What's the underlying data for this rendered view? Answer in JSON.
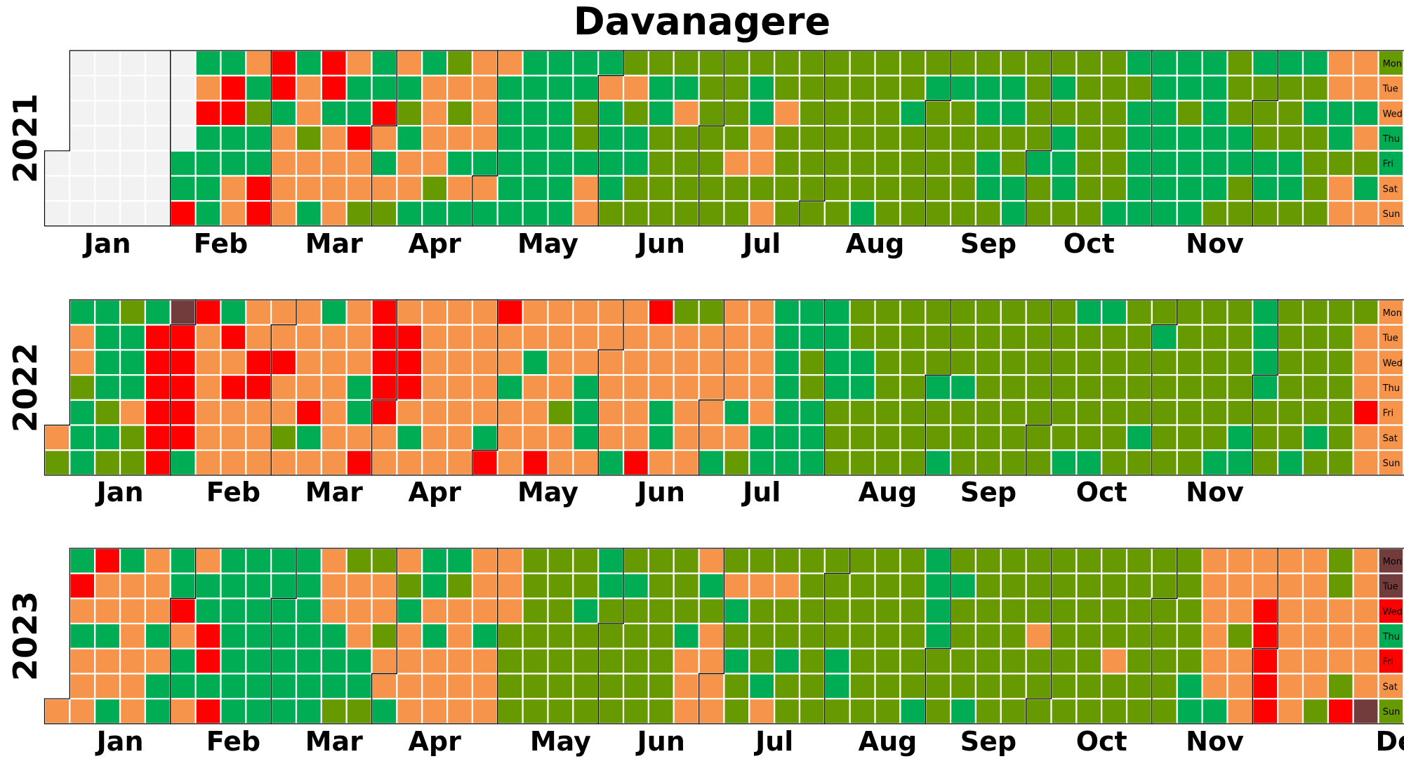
{
  "title": "Davanagere",
  "chart_data": {
    "type": "heatmap",
    "title": "Davanagere",
    "layout": "calendar",
    "day_labels": [
      "Mon",
      "Tue",
      "Wed",
      "Thu",
      "Fri",
      "Sat",
      "Sun"
    ],
    "month_labels": [
      "Jan",
      "Feb",
      "Mar",
      "Apr",
      "May",
      "Jun",
      "Jul",
      "Aug",
      "Sep",
      "Oct",
      "Nov",
      "Dec"
    ],
    "palette": {
      "G": "#00ad55",
      "O": "#679a01",
      "A": "#f5944a",
      "R": "#fe0000",
      "M": "#733c3c",
      "N": "#f2f2f2"
    },
    "years": [
      {
        "year": "2021",
        "first_weekday": 4,
        "days": "NNNNNNNNNNNNNNNNNNNNNNNNNNNNNNNNNNNGGRGARGGGGGRRGGAAAGOGGRRRRGAAAAGAAOAAGRRGAAAAAGGRAAOGGRAGAOAGOGAAGGAAAAOGOAOAGAGAAAAGAGAGGGGGGGGGGGGGGGGGGGGGGOOGAAGAGGGGOOAOGGOOOGGOOOOOGAOOOOOOOOOOOOOOOAOOOGGAAOAOOAOOOOOOOOOOOOOOOOOOOOOOOOGOOOOOOOOOGOOOOOGOOOOOOGOOOOOOGGOGGOOGGOOGGOOOOGOOOGOGGGOOOOOOOOOOOOOOGGOGGGGGGGGGGGGGGOGGGGGGGGGGOOOOGGOOGOOOGGOGOOOGGOGOGOOOOAAGGOAAAAGAOGAOAAGGAAOOOAAAOAOORRRAOOOOAGGGGAOGGAOOGAOOGGGGOGOOOAAAAOOAAAAOAAARRRRAAOGAGGGGGAAAARAAA",
        "month_starts": [
          1,
          32,
          60,
          91,
          121,
          152,
          182,
          213,
          244,
          274,
          305,
          335
        ]
      },
      {
        "year": "2022",
        "first_weekday": 5,
        "days": "AOGAAOGGGGGGGOGOOGGGAOOGRRRRRRMRRRRRGRAAAAAAGRARAAAAARRAAAAARAAOAAAAARGAGAAAAAAAAAGGARRRRRRAAARRRAGAAAAAAAAAAAAAAAAAAAAGRRAAGAAAAAGAAARAAAAOAAAAAGGGAAAAAAAGAAAAAARRAAAGGAOAAAAAAOAAAAAGAAAAGAOAAAAAGGGGGGGGGGGOOGGGGGGGOOOOOGGOOOOOOOOOOOOOOOOOOOOGOOGOOOGOOOOOOOOOOOOOOOOOOOOOOOOOOOOOOGGOOOOOGGOOOOOOOOOOOGOOGOOOOOOOOOOOOOOOOOOGOOOOOGGGGGGOOOOOOOOOGOOOOOGOOOOOOOOOAAARAAAAAAAAAARAOOAAAOGOAGOAAAARARARGAAGGARRRRRAGAGOAAAAGAOOOOGAAAAGGAAAG",
        "month_starts": [
          1,
          32,
          60,
          91,
          121,
          152,
          182,
          213,
          244,
          274,
          305,
          335
        ]
      },
      {
        "year": "2023",
        "first_weekday": 6,
        "days": "AGRAGAAARAAGAAGGAAAAAAAAAGAGGGGRAGGAAGGRRGRGGGGGGGGGGGGGGGGGGGGGGGGGGGGAAAGGGOOAAAGGOOAAOAAGAOGAAAAGGAGAAAGOAAAAAAAAGAAAAAAOOOOOOOOOOOOOOOOOOOOGOOOOGGOOOOOOGOOOOOOOOOOOOOOOGAAAAGOAAAAOAGOGOOOAOOOGAOAOOGOOOOOOOOOOOOOGGOOOOOOOOOOOOOOOOOOOOOGGGGGOOOOGOOOOGOOOOOOOOOOOOOOOOOAOOOOOOOOOOOOOOOOOOOOOAOOOOOOOOOOOOOOOOOOOOOGGAAAAAAGAAAOAAAAARRRRRAAAAAAAAAAAAAOOOAAAORAAAAAAMMMRGRAOOOOOOAAAAAAAAAAAAAOAAAAAAAAARRRAOGAOAAA",
        "month_starts": [
          1,
          32,
          60,
          91,
          121,
          152,
          182,
          213,
          244,
          274,
          305,
          335
        ]
      }
    ]
  }
}
